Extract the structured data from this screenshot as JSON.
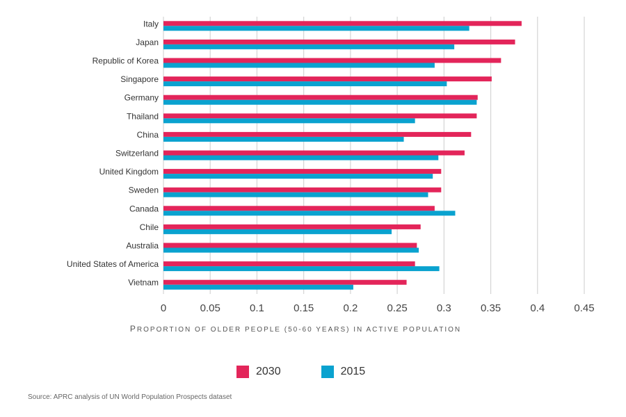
{
  "chart_data": {
    "type": "bar",
    "orientation": "horizontal",
    "categories": [
      "Italy",
      "Japan",
      "Republic of Korea",
      "Singapore",
      "Germany",
      "Thailand",
      "China",
      "Switzerland",
      "United Kingdom",
      "Sweden",
      "Canada",
      "Chile",
      "Australia",
      "United States of America",
      "Vietnam"
    ],
    "series": [
      {
        "name": "2030",
        "color": "#e3255a",
        "values": [
          0.383,
          0.376,
          0.361,
          0.351,
          0.336,
          0.335,
          0.329,
          0.322,
          0.297,
          0.297,
          0.29,
          0.275,
          0.271,
          0.269,
          0.26
        ]
      },
      {
        "name": "2015",
        "color": "#0aa2cf",
        "values": [
          0.327,
          0.311,
          0.29,
          0.303,
          0.335,
          0.269,
          0.257,
          0.294,
          0.288,
          0.283,
          0.312,
          0.244,
          0.273,
          0.295,
          0.203
        ]
      }
    ],
    "x_ticks": [
      "0",
      "0.05",
      "0.1",
      "0.15",
      "0.2",
      "0.25",
      "0.3",
      "0.35",
      "0.4",
      "0.45"
    ],
    "xlim": [
      0,
      0.45
    ],
    "xlabel": "Proportion of older people (50-60 years) in active population",
    "grid": true,
    "legend_position": "bottom"
  },
  "source": "Source:  APRC analysis of UN World Population Prospects dataset"
}
